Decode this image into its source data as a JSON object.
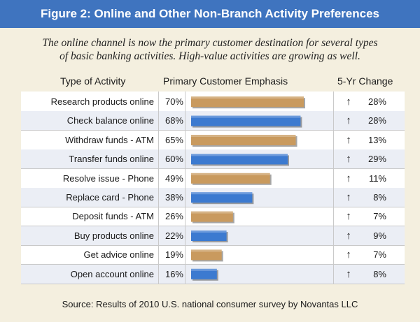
{
  "title": "Figure 2: Online and Other Non-Branch Activity Preferences",
  "subtitle_line1": "The online channel is now the primary customer destination for several types",
  "subtitle_line2": "of basic banking activities. High-value activities are growing as well.",
  "headers": {
    "activity": "Type of Activity",
    "emphasis": "Primary Customer Emphasis",
    "change": "5-Yr Change"
  },
  "source": "Source: Results of 2010 U.S. national consumer survey by Novantas LLC",
  "colors": {
    "orange": "#c99a5e",
    "blue": "#3c7ad0",
    "title_bg": "#3f74bf",
    "background": "#f4efdf"
  },
  "arrow_icon": "arrow-up-icon",
  "chart_data": {
    "type": "bar",
    "orientation": "horizontal",
    "xlim": [
      0,
      100
    ],
    "categories": [
      "Research products online",
      "Check balance online",
      "Withdraw funds - ATM",
      "Transfer funds online",
      "Resolve issue - Phone",
      "Replace card - Phone",
      "Deposit funds - ATM",
      "Buy products online",
      "Get advice online",
      "Open account online"
    ],
    "values": [
      70,
      68,
      65,
      60,
      49,
      38,
      26,
      22,
      19,
      16
    ],
    "value_labels": [
      "70%",
      "68%",
      "65%",
      "60%",
      "49%",
      "38%",
      "26%",
      "22%",
      "19%",
      "16%"
    ],
    "bar_colors": [
      "orange",
      "blue",
      "orange",
      "blue",
      "orange",
      "blue",
      "orange",
      "blue",
      "orange",
      "blue"
    ],
    "five_year_change": [
      28,
      28,
      13,
      29,
      11,
      8,
      7,
      9,
      7,
      8
    ],
    "five_year_change_labels": [
      "28%",
      "28%",
      "13%",
      "29%",
      "11%",
      "8%",
      "7%",
      "9%",
      "7%",
      "8%"
    ],
    "change_direction": [
      "up",
      "up",
      "up",
      "up",
      "up",
      "up",
      "up",
      "up",
      "up",
      "up"
    ]
  }
}
